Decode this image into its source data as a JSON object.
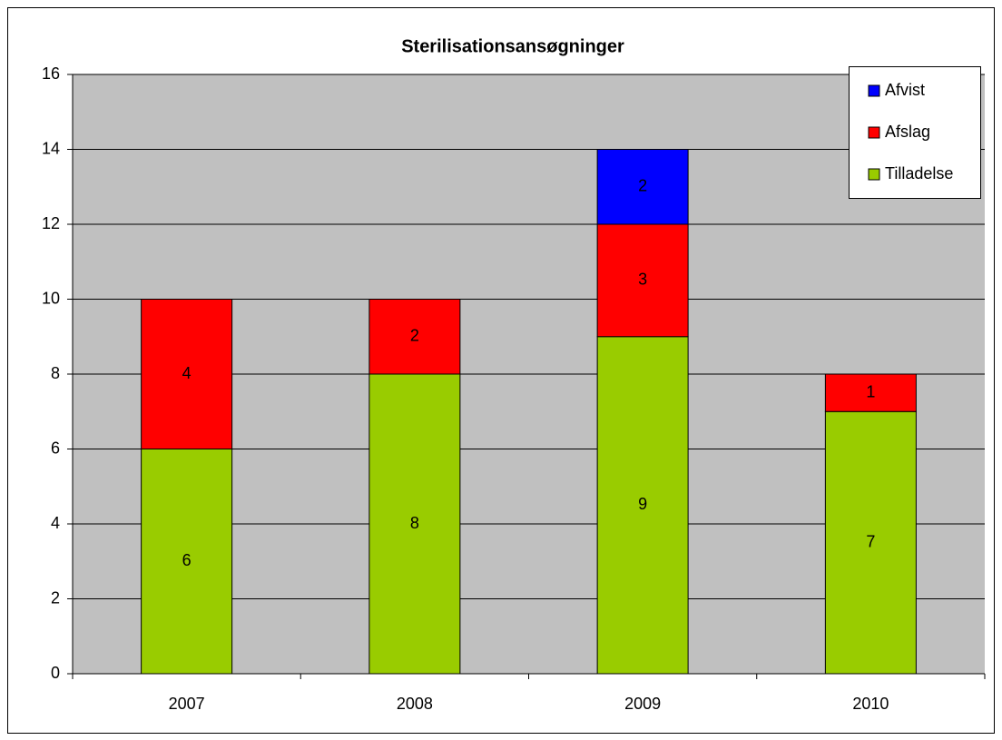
{
  "chart_data": {
    "type": "stacked_bar",
    "title": "Sterilisationsansøgninger",
    "categories": [
      "2007",
      "2008",
      "2009",
      "2010"
    ],
    "series": [
      {
        "name": "Tilladelse",
        "color": "#99cc00",
        "values": [
          6,
          8,
          9,
          7
        ]
      },
      {
        "name": "Afslag",
        "color": "#ff0000",
        "values": [
          4,
          2,
          3,
          1
        ]
      },
      {
        "name": "Afvist",
        "color": "#0000ff",
        "values": [
          null,
          null,
          2,
          null
        ]
      }
    ],
    "ylim": [
      0,
      16
    ],
    "yticks": [
      0,
      2,
      4,
      6,
      8,
      10,
      12,
      14,
      16
    ],
    "grid": true,
    "legend": "top-right"
  }
}
